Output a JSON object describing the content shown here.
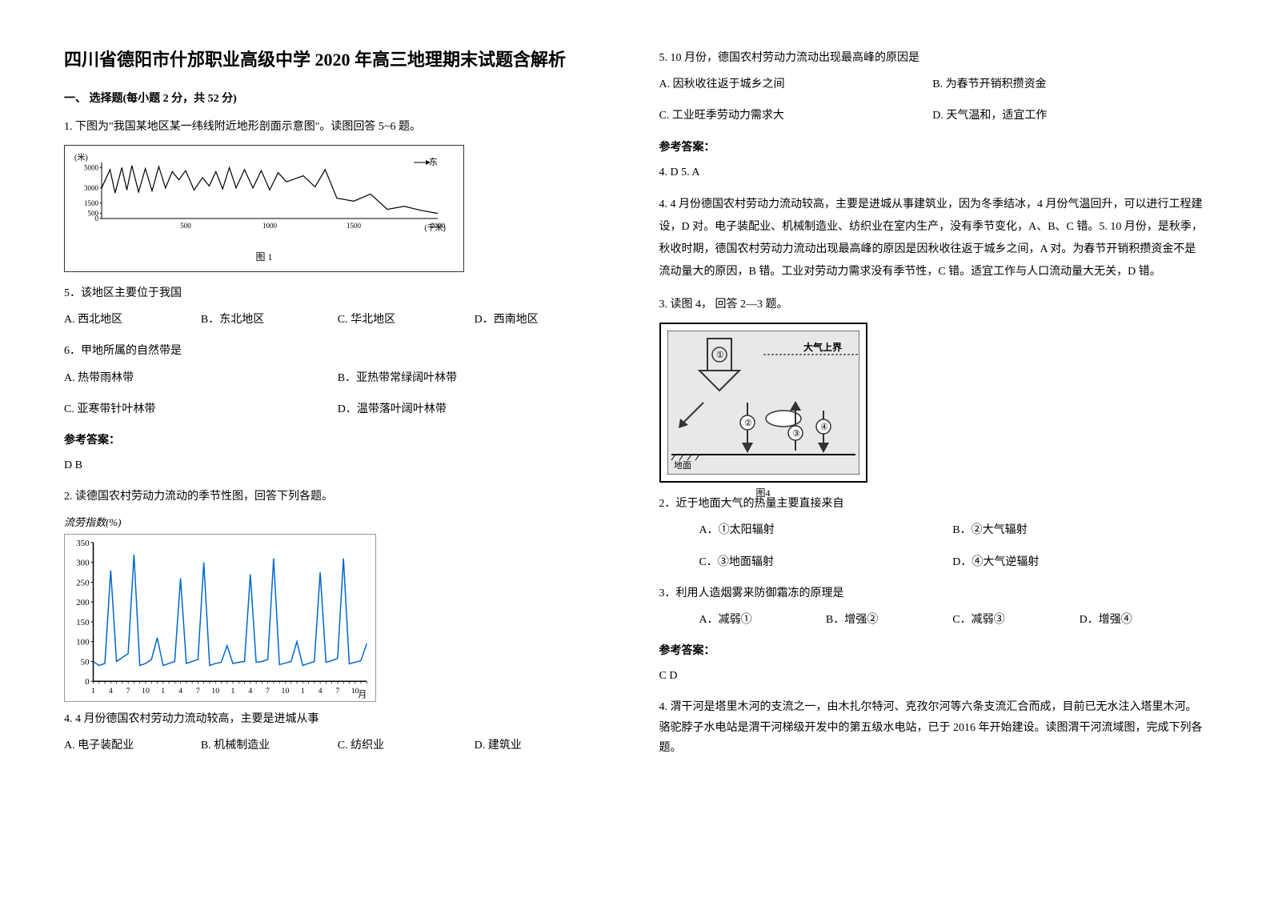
{
  "title": "四川省德阳市什邡职业高级中学 2020 年高三地理期末试题含解析",
  "section1": {
    "header": "一、 选择题(每小题 2 分，共 52 分)"
  },
  "q1": {
    "stem": "1. 下图为\"我国某地区某一纬线附近地形剖面示意图\"。读图回答 5~6 题。",
    "fig_label": "图 1",
    "sub5": "5．该地区主要位于我国",
    "sub5_a": "A. 西北地区",
    "sub5_b": "B．东北地区",
    "sub5_c": "C. 华北地区",
    "sub5_d": "D．西南地区",
    "sub6": "6．甲地所属的自然带是",
    "sub6_a": "A. 热带雨林带",
    "sub6_b": "B．亚热带常绿阔叶林带",
    "sub6_c": "C. 亚寒带针叶林带",
    "sub6_d": "D．温带落叶阔叶林带",
    "answer_label": "参考答案：",
    "answer": "D    B"
  },
  "q2": {
    "stem": "2. 读德国农村劳动力流动的季节性图，回答下列各题。",
    "chart_title": "流劳指数(%)",
    "sub4": "4.  4 月份德国农村劳动力流动较高，主要是进城从事",
    "sub4_a": "A.  电子装配业",
    "sub4_b": "B.  机械制造业",
    "sub4_c": "C.  纺织业",
    "sub4_d": "D.  建筑业",
    "sub5": "5.  10 月份，德国农村劳动力流动出现最高峰的原因是",
    "sub5_a": "A.  因秋收往返于城乡之间",
    "sub5_b": "B.  为春节开销积攒资金",
    "sub5_c": "C.  工业旺季劳动力需求大",
    "sub5_d": "D.  天气温和，适宜工作",
    "answer_label": "参考答案：",
    "answer": "4.  D         5.  A",
    "explain": "4.  4 月份德国农村劳动力流动较高，主要是进城从事建筑业，因为冬季结冰，4 月份气温回升，可以进行工程建设，D 对。电子装配业、机械制造业、纺织业在室内生产，没有季节变化，A、B、C 错。5.  10 月份，是秋季，秋收时期，德国农村劳动力流动出现最高峰的原因是因秋收往返于城乡之间，A 对。为春节开销积攒资金不是流动量大的原因，B 错。工业对劳动力需求没有季节性，C 错。适宜工作与人口流动量大无关，D 错。"
  },
  "q3": {
    "stem": "3. 读图  4，  回答  2—3  题。",
    "fig_label": "图4",
    "diagram_text": "大气上界",
    "sub2": "2．近于地面大气的热量主要直接来自",
    "sub2_a": "A．①太阳辐射",
    "sub2_b": "B．②大气辐射",
    "sub2_c": "C．③地面辐射",
    "sub2_d": "D．④大气逆辐射",
    "sub3": "3．利用人造烟雾来防御霜冻的原理是",
    "sub3_a": "A．减弱①",
    "sub3_b": "B．增强②",
    "sub3_c": "C．减弱③",
    "sub3_d": "D．增强④",
    "answer_label": "参考答案：",
    "answer": "C  D"
  },
  "q4": {
    "stem": "4. 渭干河是塔里木河的支流之一，由木扎尔特河、克孜尔河等六条支流汇合而成，目前已无水注入塔里木河。骆驼脖子水电站是渭干河梯级开发中的第五级水电站，已于 2016 年开始建设。读图渭干河流域图，完成下列各题。"
  },
  "terrain_chart": {
    "y_axis_label": "(米)",
    "y_ticks": [
      "5000",
      "3000",
      "1500",
      "500",
      "0"
    ],
    "x_ticks": [
      "500",
      "1000",
      "1500",
      "2000"
    ],
    "x_unit": "(千米)",
    "east_label": "东",
    "profile_points": [
      [
        0,
        3000
      ],
      [
        50,
        4800
      ],
      [
        80,
        2500
      ],
      [
        120,
        5000
      ],
      [
        150,
        2800
      ],
      [
        180,
        5200
      ],
      [
        220,
        2600
      ],
      [
        260,
        4900
      ],
      [
        300,
        2700
      ],
      [
        340,
        5100
      ],
      [
        380,
        3000
      ],
      [
        420,
        4600
      ],
      [
        460,
        3800
      ],
      [
        500,
        4700
      ],
      [
        550,
        2800
      ],
      [
        600,
        4000
      ],
      [
        640,
        3200
      ],
      [
        680,
        4600
      ],
      [
        720,
        2900
      ],
      [
        760,
        5000
      ],
      [
        800,
        3000
      ],
      [
        850,
        4800
      ],
      [
        900,
        3000
      ],
      [
        950,
        4700
      ],
      [
        1000,
        2800
      ],
      [
        1050,
        4500
      ],
      [
        1100,
        3600
      ],
      [
        1200,
        4200
      ],
      [
        1270,
        3100
      ],
      [
        1330,
        4800
      ],
      [
        1400,
        2000
      ],
      [
        1500,
        1700
      ],
      [
        1600,
        2400
      ],
      [
        1700,
        900
      ],
      [
        1800,
        1200
      ],
      [
        1900,
        800
      ],
      [
        2000,
        500
      ]
    ],
    "colors": {
      "line": "#000",
      "axis": "#000",
      "bg": "#fff"
    }
  },
  "seasonal_chart": {
    "y_ticks": [
      0,
      50,
      100,
      150,
      200,
      250,
      300,
      350
    ],
    "x_labels": [
      "1",
      "4",
      "7",
      "10",
      "1",
      "4",
      "7",
      "10",
      "1",
      "4",
      "7",
      "10",
      "1",
      "4",
      "7",
      "10"
    ],
    "x_unit": "月",
    "values": [
      50,
      40,
      45,
      280,
      50,
      60,
      70,
      320,
      40,
      45,
      55,
      110,
      40,
      45,
      50,
      260,
      45,
      50,
      55,
      300,
      40,
      45,
      48,
      90,
      45,
      48,
      50,
      270,
      48,
      50,
      55,
      310,
      42,
      46,
      50,
      100,
      40,
      45,
      50,
      275,
      48,
      52,
      58,
      310,
      44,
      48,
      52,
      95
    ],
    "colors": {
      "line": "#0066cc",
      "axis": "#000",
      "grid": "#ccc",
      "bg": "#fff"
    }
  },
  "atm_diagram": {
    "labels": [
      "①",
      "②",
      "③",
      "④"
    ],
    "top_label": "大气上界",
    "bottom_label": "地面",
    "colors": {
      "border": "#000",
      "arrow": "#333",
      "bg": "#e8e8e8"
    }
  }
}
